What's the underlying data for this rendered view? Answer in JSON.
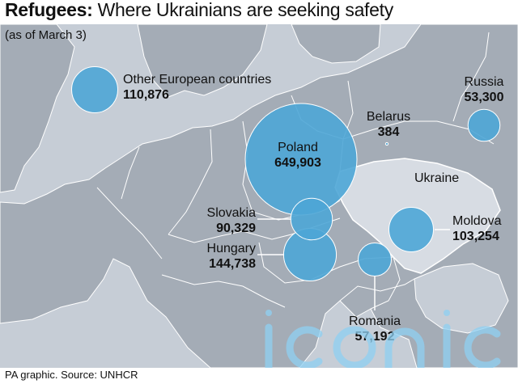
{
  "title": {
    "bold": "Refugees:",
    "rest": " Where Ukrainians are seeking safety"
  },
  "subtitle": "(as of March 3)",
  "source": "PA graphic. Source: UNHCR",
  "watermark": "iconic",
  "region_label": "Ukraine",
  "colors": {
    "bubble": "#4ea6d6",
    "bubble_stroke": "#ffffff",
    "land": "#a4acb6",
    "sea": "#c6cdd6",
    "ukraine": "#d7dce3",
    "border": "#ffffff"
  },
  "destinations": [
    {
      "name": "Poland",
      "value": "649,903"
    },
    {
      "name": "Hungary",
      "value": "144,738"
    },
    {
      "name": "Other European countries",
      "value": "110,876"
    },
    {
      "name": "Moldova",
      "value": "103,254"
    },
    {
      "name": "Slovakia",
      "value": "90,329"
    },
    {
      "name": "Romania",
      "value": "57,192"
    },
    {
      "name": "Russia",
      "value": "53,300"
    },
    {
      "name": "Belarus",
      "value": "384"
    }
  ]
}
